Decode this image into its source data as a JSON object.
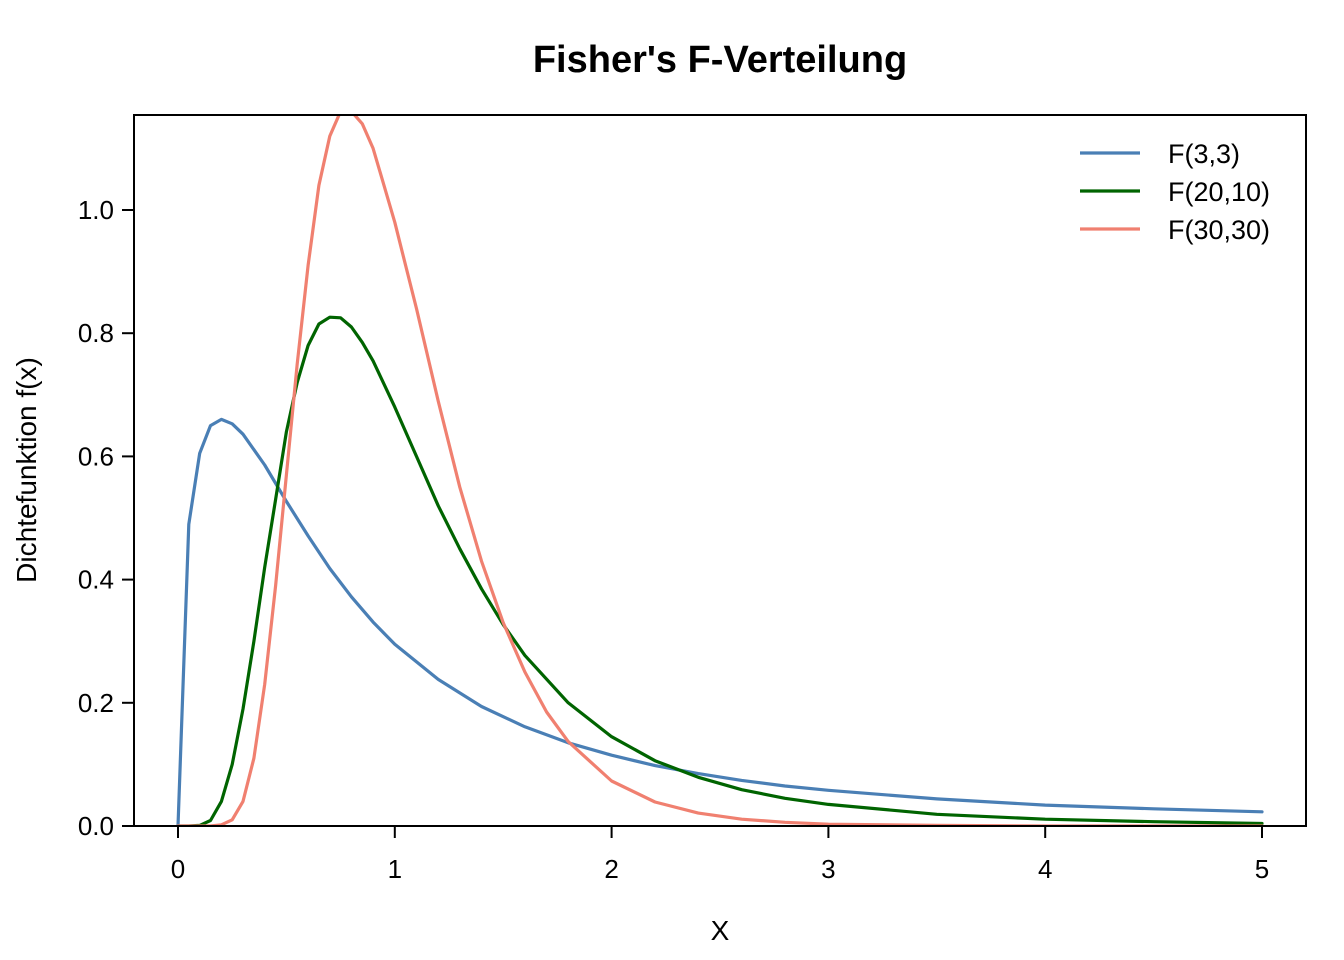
{
  "chart_data": {
    "type": "line",
    "title": "Fisher's F-Verteilung",
    "xlabel": "X",
    "ylabel": "Dichtefunktion f(x)",
    "xlim": [
      -0.2,
      5.2
    ],
    "ylim": [
      -0.0,
      1.155
    ],
    "x_ticks": [
      0,
      1,
      2,
      3,
      4,
      5
    ],
    "x_tick_labels": [
      "0",
      "1",
      "2",
      "3",
      "4",
      "5"
    ],
    "y_ticks": [
      0.0,
      0.2,
      0.4,
      0.6,
      0.8,
      1.0
    ],
    "y_tick_labels": [
      "0.0",
      "0.2",
      "0.4",
      "0.6",
      "0.8",
      "1.0"
    ],
    "grid": false,
    "legend_position": "top-right",
    "series": [
      {
        "name": "F(3,3)",
        "color": "#4a7fb5",
        "x": [
          0,
          0.05,
          0.1,
          0.15,
          0.2,
          0.25,
          0.3,
          0.4,
          0.5,
          0.6,
          0.7,
          0.8,
          0.9,
          1.0,
          1.2,
          1.4,
          1.6,
          1.8,
          2.0,
          2.2,
          2.4,
          2.6,
          2.8,
          3.0,
          3.5,
          4.0,
          4.5,
          5.0
        ],
        "y": [
          0,
          0.49,
          0.605,
          0.65,
          0.66,
          0.653,
          0.636,
          0.586,
          0.527,
          0.471,
          0.418,
          0.372,
          0.331,
          0.295,
          0.238,
          0.194,
          0.161,
          0.135,
          0.115,
          0.098,
          0.085,
          0.074,
          0.065,
          0.058,
          0.044,
          0.034,
          0.028,
          0.023
        ]
      },
      {
        "name": "F(20,10)",
        "color": "#006400",
        "x": [
          0,
          0.05,
          0.1,
          0.15,
          0.2,
          0.25,
          0.3,
          0.35,
          0.4,
          0.45,
          0.5,
          0.55,
          0.6,
          0.65,
          0.7,
          0.75,
          0.8,
          0.85,
          0.9,
          1.0,
          1.1,
          1.2,
          1.3,
          1.4,
          1.5,
          1.6,
          1.8,
          2.0,
          2.2,
          2.4,
          2.6,
          2.8,
          3.0,
          3.5,
          4.0,
          4.5,
          5.0
        ],
        "y": [
          0,
          0.0,
          0.001,
          0.009,
          0.04,
          0.1,
          0.19,
          0.3,
          0.42,
          0.53,
          0.64,
          0.72,
          0.78,
          0.815,
          0.826,
          0.825,
          0.81,
          0.785,
          0.755,
          0.68,
          0.6,
          0.52,
          0.45,
          0.385,
          0.327,
          0.277,
          0.2,
          0.145,
          0.106,
          0.079,
          0.059,
          0.045,
          0.035,
          0.019,
          0.011,
          0.007,
          0.004
        ]
      },
      {
        "name": "F(30,30)",
        "color": "#f08070",
        "x": [
          0,
          0.1,
          0.15,
          0.2,
          0.25,
          0.3,
          0.35,
          0.4,
          0.45,
          0.5,
          0.55,
          0.6,
          0.65,
          0.7,
          0.75,
          0.8,
          0.85,
          0.9,
          0.95,
          1.0,
          1.05,
          1.1,
          1.2,
          1.3,
          1.4,
          1.5,
          1.6,
          1.7,
          1.8,
          2.0,
          2.2,
          2.4,
          2.6,
          2.8,
          3.0,
          3.5,
          4.0,
          4.5,
          5.0
        ],
        "y": [
          0,
          0.0,
          0.0,
          0.002,
          0.01,
          0.04,
          0.11,
          0.23,
          0.39,
          0.57,
          0.75,
          0.91,
          1.04,
          1.12,
          1.16,
          1.16,
          1.14,
          1.1,
          1.04,
          0.98,
          0.91,
          0.84,
          0.69,
          0.55,
          0.43,
          0.33,
          0.25,
          0.185,
          0.137,
          0.073,
          0.039,
          0.021,
          0.011,
          0.006,
          0.003,
          0.001,
          0.0,
          0.0,
          0.0
        ]
      }
    ]
  }
}
